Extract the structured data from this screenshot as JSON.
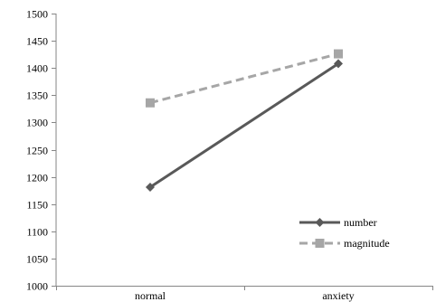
{
  "chart_data": {
    "type": "line",
    "title": "",
    "xlabel": "",
    "ylabel": "",
    "categories": [
      "normal",
      "anxiety"
    ],
    "ylim": [
      1000,
      1500
    ],
    "yticks": [
      1000,
      1050,
      1100,
      1150,
      1200,
      1250,
      1300,
      1350,
      1400,
      1450,
      1500
    ],
    "grid": false,
    "legend_position": "bottom-right",
    "series": [
      {
        "name": "number",
        "values": [
          1181,
          1408
        ],
        "color": "#595959",
        "marker": "diamond",
        "dash": "solid"
      },
      {
        "name": "magnitude",
        "values": [
          1336,
          1426
        ],
        "color": "#a6a6a6",
        "marker": "square",
        "dash": "dashed"
      }
    ]
  }
}
